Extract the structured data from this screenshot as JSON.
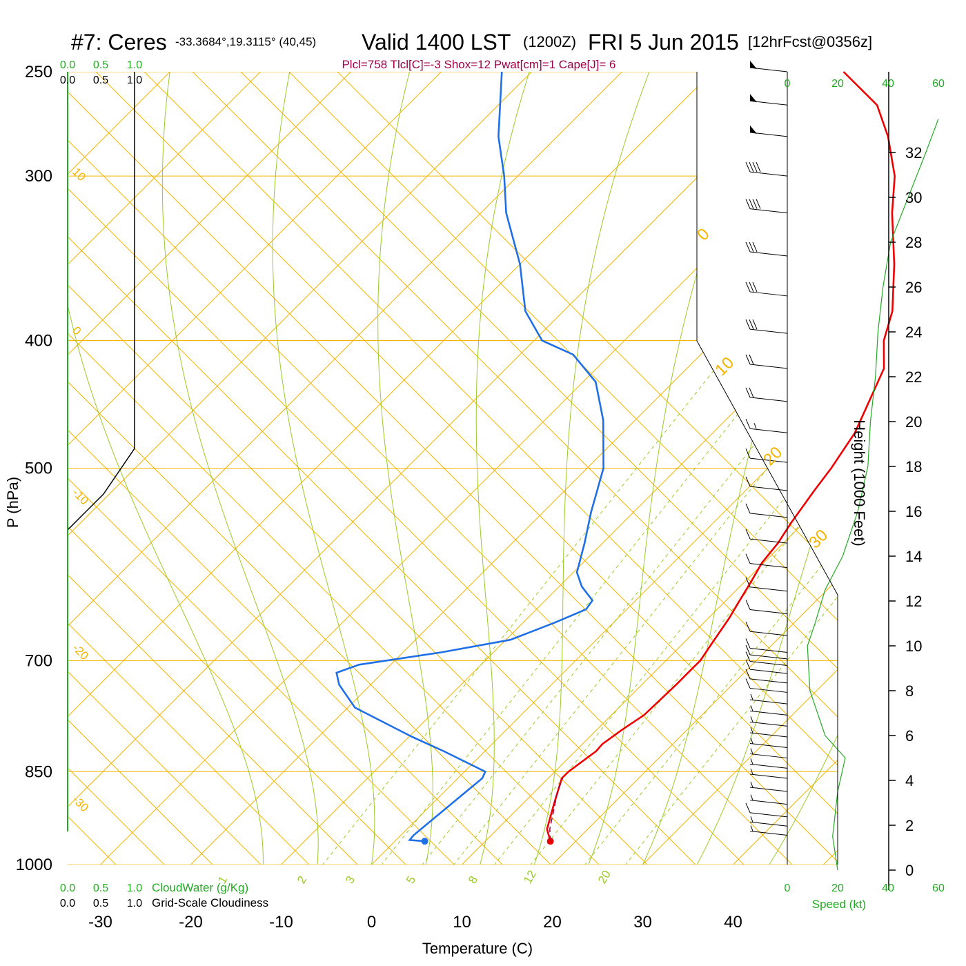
{
  "chart_data": {
    "type": "line",
    "title": {
      "station": "#7: Ceres",
      "coords": "-33.3684°,19.3115° (40,45)",
      "valid": "Valid 1400 LST",
      "utc": "(1200Z)",
      "date": "FRI 5 Jun 2015",
      "forecast": "[12hrFcst@0356z]"
    },
    "subtitle": "Plcl=758 Tlcl[C]=-3 Shox=12 Pwat[cm]=1 Cape[J]= 6",
    "xlabel": "Temperature (C)",
    "ylabel": "P (hPa)",
    "height_label": "Height (1000 Feet)",
    "speed_label": "Speed (kt)",
    "cloudwater_label": "CloudWater (g/Kg)",
    "cloudiness_label": "Grid-Scale Cloudiness",
    "cloud_scale_ticks": [
      "0.0",
      "0.5",
      "1.0"
    ],
    "x_ticks": [
      "-30",
      "-20",
      "-10",
      "0",
      "10",
      "20",
      "30",
      "40"
    ],
    "pressure_ticks": [
      "250",
      "300",
      "400",
      "500",
      "700",
      "850",
      "1000"
    ],
    "height_ticks": [
      "0",
      "2",
      "4",
      "6",
      "8",
      "10",
      "12",
      "14",
      "16",
      "18",
      "20",
      "22",
      "24",
      "26",
      "28",
      "30",
      "32"
    ],
    "speed_ticks": [
      "0",
      "20",
      "40",
      "60"
    ],
    "isotherm_labels": [
      "10",
      "0",
      "-10",
      "-20",
      "-30"
    ],
    "dry_adiabat_labels": [
      "0",
      "10",
      "20",
      "30"
    ],
    "mixing_ratio_labels": [
      "1",
      "2",
      "3",
      "5",
      "8",
      "12",
      "20"
    ],
    "x_range": [
      -30,
      40
    ],
    "p_range": [
      250,
      1000
    ],
    "skew": "temperature isotherms skewed 45°, log-pressure axis",
    "series": [
      {
        "kind": "temperature",
        "color": "#ee0000",
        "points": [
          [
            17.2,
            960
          ],
          [
            15.5,
            940
          ],
          [
            13.5,
            900
          ],
          [
            11.5,
            860
          ],
          [
            11.5,
            850
          ],
          [
            12.3,
            820
          ],
          [
            12.2,
            810
          ],
          [
            12.8,
            790
          ],
          [
            13.6,
            770
          ],
          [
            13.7,
            750
          ],
          [
            13.8,
            730
          ],
          [
            13.8,
            710
          ],
          [
            13.8,
            700
          ],
          [
            13.2,
            680
          ],
          [
            12.3,
            650
          ],
          [
            11.5,
            630
          ],
          [
            10.7,
            610
          ],
          [
            9.8,
            590
          ],
          [
            9.4,
            570
          ],
          [
            8.6,
            550
          ],
          [
            7.6,
            520
          ],
          [
            7.0,
            500
          ],
          [
            5.7,
            470
          ],
          [
            4.2,
            450
          ],
          [
            1.8,
            420
          ],
          [
            -1.3,
            400
          ],
          [
            -3.6,
            380
          ],
          [
            -8.6,
            350
          ],
          [
            -14.5,
            320
          ],
          [
            -18.3,
            300
          ],
          [
            -23.4,
            280
          ],
          [
            -28.1,
            265
          ],
          [
            -35.5,
            250
          ]
        ]
      },
      {
        "kind": "dewpoint",
        "color": "#1f6fe6",
        "points": [
          [
            3.3,
            960
          ],
          [
            1.5,
            958
          ],
          [
            1.4,
            950
          ],
          [
            2.4,
            880
          ],
          [
            2.7,
            860
          ],
          [
            2.3,
            850
          ],
          [
            -4.6,
            820
          ],
          [
            -9.6,
            800
          ],
          [
            -19.2,
            760
          ],
          [
            -23.5,
            730
          ],
          [
            -25.1,
            715
          ],
          [
            -23.5,
            705
          ],
          [
            -15.8,
            690
          ],
          [
            -9.5,
            675
          ],
          [
            -6.5,
            655
          ],
          [
            -4.5,
            640
          ],
          [
            -4.8,
            630
          ],
          [
            -7.5,
            615
          ],
          [
            -9.6,
            600
          ],
          [
            -12.0,
            570
          ],
          [
            -14.7,
            540
          ],
          [
            -18.2,
            500
          ],
          [
            -23.5,
            460
          ],
          [
            -28.6,
            430
          ],
          [
            -34.1,
            410
          ],
          [
            -39.1,
            400
          ],
          [
            -44.2,
            380
          ],
          [
            -50.0,
            350
          ],
          [
            -57.2,
            320
          ],
          [
            -61.5,
            300
          ],
          [
            -66.5,
            280
          ],
          [
            -73.3,
            250
          ]
        ]
      },
      {
        "kind": "parcel",
        "color": "#990044",
        "points": [
          [
            17.2,
            960
          ],
          [
            15.8,
            940
          ],
          [
            12.5,
            880
          ],
          [
            11.6,
            860
          ]
        ]
      }
    ],
    "wind_barbs": [
      {
        "p": 950,
        "flag": 0,
        "long": 0,
        "short": 1
      },
      {
        "p": 935,
        "flag": 0,
        "long": 0,
        "short": 1
      },
      {
        "p": 920,
        "flag": 0,
        "long": 1,
        "short": 0
      },
      {
        "p": 900,
        "flag": 0,
        "long": 0,
        "short": 1
      },
      {
        "p": 880,
        "flag": 0,
        "long": 0,
        "short": 1
      },
      {
        "p": 860,
        "flag": 0,
        "long": 0,
        "short": 1
      },
      {
        "p": 845,
        "flag": 0,
        "long": 0,
        "short": 1
      },
      {
        "p": 830,
        "flag": 0,
        "long": 0,
        "short": 1
      },
      {
        "p": 815,
        "flag": 0,
        "long": 0,
        "short": 1
      },
      {
        "p": 800,
        "flag": 0,
        "long": 0,
        "short": 1
      },
      {
        "p": 785,
        "flag": 0,
        "long": 0,
        "short": 1
      },
      {
        "p": 770,
        "flag": 0,
        "long": 0,
        "short": 1
      },
      {
        "p": 755,
        "flag": 0,
        "long": 0,
        "short": 1
      },
      {
        "p": 740,
        "flag": 0,
        "long": 1,
        "short": 0
      },
      {
        "p": 728,
        "flag": 0,
        "long": 1,
        "short": 0
      },
      {
        "p": 716,
        "flag": 0,
        "long": 1,
        "short": 0
      },
      {
        "p": 706,
        "flag": 0,
        "long": 1,
        "short": 0
      },
      {
        "p": 698,
        "flag": 0,
        "long": 1,
        "short": 0
      },
      {
        "p": 690,
        "flag": 0,
        "long": 1,
        "short": 0
      },
      {
        "p": 670,
        "flag": 0,
        "long": 1,
        "short": 0
      },
      {
        "p": 645,
        "flag": 0,
        "long": 1,
        "short": 0
      },
      {
        "p": 620,
        "flag": 0,
        "long": 1,
        "short": 0
      },
      {
        "p": 595,
        "flag": 0,
        "long": 1,
        "short": 0
      },
      {
        "p": 570,
        "flag": 0,
        "long": 1,
        "short": 0
      },
      {
        "p": 545,
        "flag": 0,
        "long": 1,
        "short": 0
      },
      {
        "p": 520,
        "flag": 0,
        "long": 1,
        "short": 0
      },
      {
        "p": 495,
        "flag": 0,
        "long": 1,
        "short": 0
      },
      {
        "p": 470,
        "flag": 0,
        "long": 1,
        "short": 1
      },
      {
        "p": 445,
        "flag": 0,
        "long": 2,
        "short": 0
      },
      {
        "p": 420,
        "flag": 0,
        "long": 2,
        "short": 0
      },
      {
        "p": 395,
        "flag": 0,
        "long": 3,
        "short": 0
      },
      {
        "p": 370,
        "flag": 0,
        "long": 3,
        "short": 0
      },
      {
        "p": 345,
        "flag": 0,
        "long": 3,
        "short": 0
      },
      {
        "p": 320,
        "flag": 0,
        "long": 4,
        "short": 0
      },
      {
        "p": 300,
        "flag": 0,
        "long": 4,
        "short": 0
      },
      {
        "p": 280,
        "flag": 1,
        "long": 0,
        "short": 0
      },
      {
        "p": 265,
        "flag": 1,
        "long": 0,
        "short": 0
      },
      {
        "p": 250,
        "flag": 1,
        "long": 0,
        "short": 0
      }
    ],
    "wind_speed_profile": [
      [
        0,
        20
      ],
      [
        1.5,
        18
      ],
      [
        3.5,
        20
      ],
      [
        5,
        23
      ],
      [
        6,
        15
      ],
      [
        8,
        9
      ],
      [
        10,
        8
      ],
      [
        11,
        11
      ],
      [
        12.5,
        15
      ],
      [
        14,
        22
      ],
      [
        16,
        28
      ],
      [
        18,
        32
      ],
      [
        20,
        33
      ],
      [
        22,
        35
      ],
      [
        24,
        36
      ],
      [
        26,
        38
      ],
      [
        28,
        41
      ],
      [
        30,
        48
      ],
      [
        32,
        55
      ],
      [
        33.5,
        60
      ]
    ],
    "cloud_profile": [
      [
        1000,
        0
      ],
      [
        500,
        0
      ],
      [
        470,
        0
      ],
      [
        250,
        0
      ]
    ],
    "freezing_level_line": "black"
  }
}
